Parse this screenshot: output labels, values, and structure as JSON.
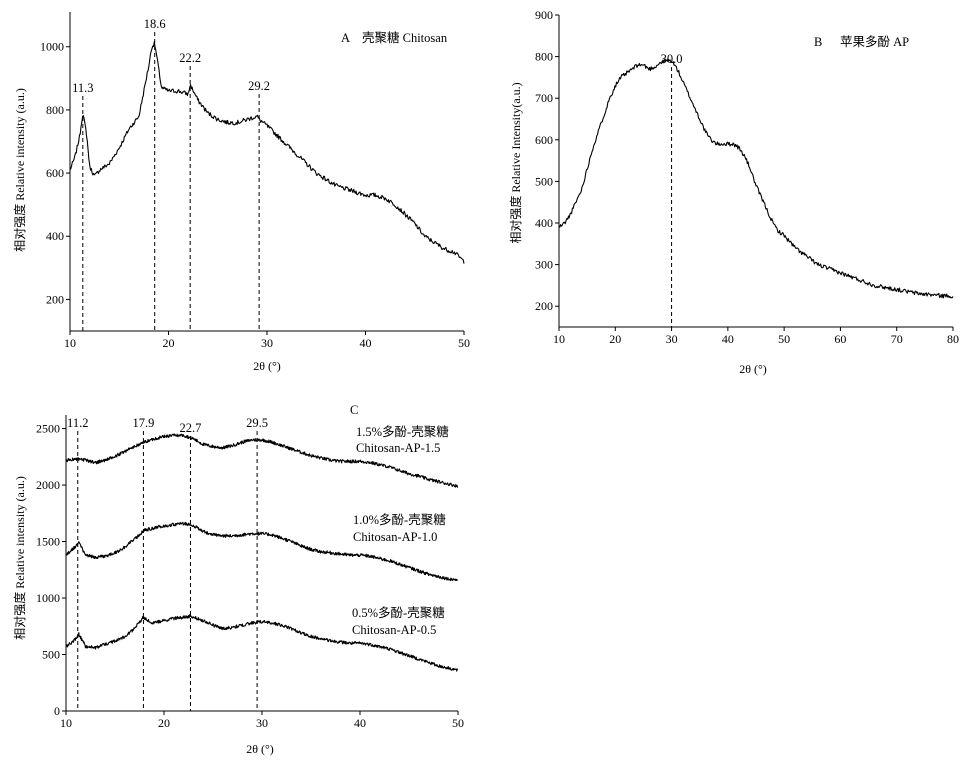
{
  "chart_data": [
    {
      "id": "A",
      "type": "line",
      "panel_label": "A",
      "title": "壳聚糖  Chitosan",
      "xlabel": "2θ (°)",
      "ylabel": "相对强度 Relative intensity (a.u.)",
      "xlim": [
        10,
        50
      ],
      "ylim": [
        100,
        1110
      ],
      "xticks": [
        10,
        20,
        30,
        40,
        50
      ],
      "yticks": [
        200,
        400,
        600,
        800,
        1000
      ],
      "peaks": [
        {
          "x": 11.3,
          "label": "11.3"
        },
        {
          "x": 18.6,
          "label": "18.6"
        },
        {
          "x": 22.2,
          "label": "22.2"
        },
        {
          "x": 29.2,
          "label": "29.2"
        }
      ],
      "series": [
        {
          "x": [
            10,
            10.5,
            11,
            11.3,
            11.7,
            12,
            12.5,
            13,
            14,
            15,
            16,
            16.5,
            17,
            17.5,
            18,
            18.3,
            18.6,
            18.9,
            19.3,
            20,
            21,
            22,
            22.2,
            23,
            24,
            25,
            26,
            27,
            28,
            29,
            29.2,
            30,
            31,
            32,
            33,
            34,
            35,
            36,
            37,
            38,
            39,
            40,
            41,
            42,
            43,
            44,
            45,
            46,
            47,
            48,
            49,
            50
          ],
          "y": [
            610,
            650,
            720,
            790,
            720,
            620,
            590,
            610,
            630,
            680,
            740,
            760,
            780,
            860,
            940,
            1000,
            1010,
            950,
            870,
            860,
            860,
            850,
            880,
            830,
            790,
            770,
            760,
            760,
            770,
            780,
            770,
            750,
            720,
            690,
            660,
            630,
            600,
            580,
            560,
            550,
            540,
            530,
            530,
            520,
            500,
            470,
            440,
            400,
            380,
            360,
            350,
            320
          ]
        }
      ]
    },
    {
      "id": "B",
      "type": "line",
      "panel_label": "B",
      "title": "苹果多酚  AP",
      "xlabel": "2θ (°)",
      "ylabel": "相对强度 Relative Intensity(a.u.)",
      "xlim": [
        10,
        80
      ],
      "ylim": [
        150,
        900
      ],
      "xticks": [
        10,
        20,
        30,
        40,
        50,
        60,
        70,
        80
      ],
      "yticks": [
        200,
        300,
        400,
        500,
        600,
        700,
        800,
        900
      ],
      "peaks": [
        {
          "x": 30.0,
          "label": "30.0"
        }
      ],
      "series": [
        {
          "x": [
            10,
            11,
            12,
            13,
            14,
            15,
            16,
            17,
            18,
            19,
            20,
            21,
            22,
            23,
            24,
            25,
            26,
            27,
            28,
            29,
            30,
            31,
            32,
            33,
            34,
            35,
            36,
            37,
            38,
            39,
            40,
            41,
            42,
            43,
            44,
            45,
            46,
            47,
            48,
            49,
            50,
            52,
            54,
            56,
            58,
            60,
            62,
            64,
            66,
            68,
            70,
            72,
            74,
            76,
            78,
            80
          ],
          "y": [
            390,
            400,
            420,
            450,
            480,
            530,
            580,
            620,
            660,
            700,
            730,
            750,
            760,
            770,
            780,
            780,
            770,
            775,
            785,
            790,
            790,
            770,
            740,
            710,
            680,
            650,
            620,
            600,
            590,
            590,
            590,
            590,
            580,
            560,
            530,
            490,
            460,
            430,
            400,
            380,
            370,
            340,
            320,
            300,
            290,
            280,
            270,
            260,
            250,
            245,
            240,
            235,
            230,
            228,
            225,
            225
          ]
        }
      ]
    },
    {
      "id": "C",
      "type": "line",
      "panel_label": "C",
      "title": "",
      "xlabel": "2θ (°)",
      "ylabel": "相对强度 Relative intensity (a.u.)",
      "xlim": [
        10,
        50
      ],
      "ylim": [
        0,
        2620
      ],
      "xticks": [
        10,
        20,
        30,
        40,
        50
      ],
      "yticks": [
        0,
        500,
        1000,
        1500,
        2000,
        2500
      ],
      "peaks": [
        {
          "x": 11.2,
          "label": "11.2"
        },
        {
          "x": 17.9,
          "label": "17.9"
        },
        {
          "x": 22.7,
          "label": "22.7"
        },
        {
          "x": 29.5,
          "label": "29.5"
        }
      ],
      "annotations": [
        {
          "line1": "1.5%多酚-壳聚糖",
          "line2": "Chitosan-AP-1.5"
        },
        {
          "line1": "1.0%多酚-壳聚糖",
          "line2": "Chitosan-AP-1.0"
        },
        {
          "line1": "0.5%多酚-壳聚糖",
          "line2": "Chitosan-AP-0.5"
        }
      ],
      "series": [
        {
          "name": "Chitosan-AP-1.5",
          "x": [
            10,
            11,
            12,
            13,
            14,
            15,
            16,
            17,
            18,
            19,
            20,
            21,
            22,
            23,
            24,
            25,
            26,
            27,
            28,
            29,
            30,
            31,
            32,
            33,
            34,
            35,
            36,
            37,
            38,
            39,
            40,
            41,
            42,
            43,
            44,
            45,
            46,
            47,
            48,
            49,
            50
          ],
          "y": [
            2220,
            2230,
            2220,
            2200,
            2220,
            2250,
            2300,
            2340,
            2380,
            2410,
            2430,
            2440,
            2440,
            2410,
            2360,
            2340,
            2330,
            2350,
            2380,
            2400,
            2400,
            2380,
            2350,
            2320,
            2290,
            2260,
            2240,
            2220,
            2210,
            2210,
            2210,
            2200,
            2180,
            2160,
            2130,
            2100,
            2080,
            2050,
            2030,
            2010,
            1990
          ]
        },
        {
          "name": "Chitosan-AP-1.0",
          "x": [
            10,
            10.5,
            11,
            11.3,
            11.7,
            12,
            13,
            14,
            15,
            16,
            17,
            18,
            19,
            20,
            21,
            22,
            22.7,
            23,
            24,
            25,
            26,
            27,
            28,
            29,
            30,
            31,
            32,
            33,
            34,
            35,
            36,
            37,
            38,
            39,
            40,
            41,
            42,
            43,
            44,
            45,
            46,
            47,
            48,
            49,
            50
          ],
          "y": [
            1380,
            1420,
            1460,
            1490,
            1430,
            1380,
            1360,
            1370,
            1400,
            1450,
            1520,
            1600,
            1620,
            1640,
            1650,
            1660,
            1650,
            1640,
            1590,
            1560,
            1550,
            1550,
            1560,
            1570,
            1570,
            1560,
            1530,
            1500,
            1460,
            1430,
            1410,
            1400,
            1390,
            1380,
            1380,
            1370,
            1350,
            1330,
            1300,
            1270,
            1240,
            1210,
            1190,
            1170,
            1160
          ]
        },
        {
          "name": "Chitosan-AP-0.5",
          "x": [
            10,
            10.5,
            11,
            11.3,
            11.7,
            12,
            13,
            14,
            15,
            16,
            17,
            17.9,
            18.5,
            19,
            20,
            21,
            22,
            22.7,
            23,
            24,
            25,
            26,
            27,
            28,
            29,
            30,
            31,
            32,
            33,
            34,
            35,
            36,
            37,
            38,
            39,
            40,
            41,
            42,
            43,
            44,
            45,
            46,
            47,
            48,
            49,
            50
          ],
          "y": [
            570,
            600,
            640,
            680,
            620,
            570,
            560,
            590,
            620,
            660,
            730,
            830,
            790,
            780,
            800,
            820,
            830,
            840,
            830,
            800,
            760,
            730,
            740,
            760,
            780,
            790,
            780,
            760,
            730,
            690,
            660,
            640,
            620,
            610,
            600,
            600,
            590,
            570,
            550,
            520,
            490,
            460,
            430,
            400,
            380,
            360
          ]
        }
      ]
    }
  ]
}
